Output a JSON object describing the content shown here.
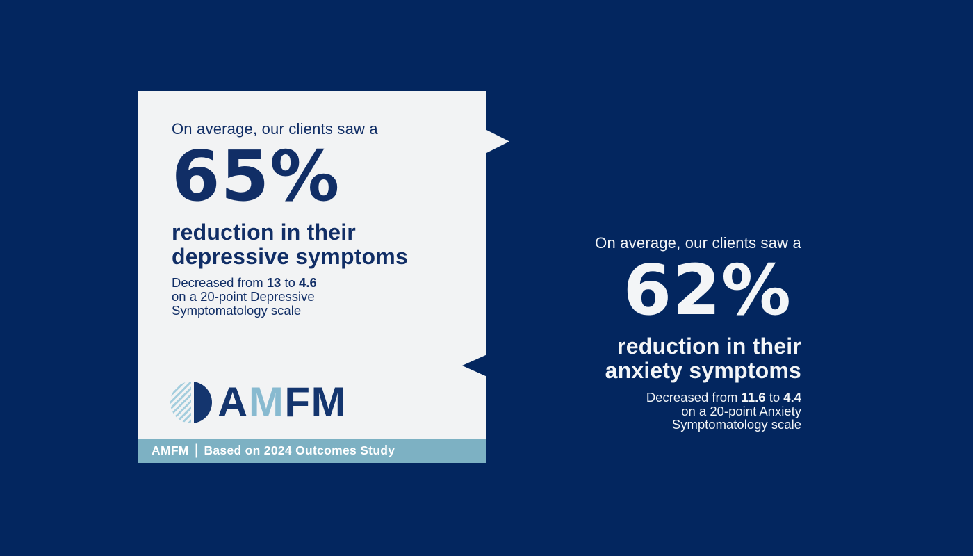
{
  "colors": {
    "background_navy": "#03265f",
    "card_background": "#f2f3f4",
    "card_text_navy": "#112e66",
    "footer_blue": "#7db1c3",
    "logo_stripe_blue": "#a5cede",
    "logo_light_blue": "#88bad0",
    "logo_navy": "#14356e",
    "white_text": "#f3f5f7"
  },
  "depression_card": {
    "lead": "On average, our clients saw a",
    "percent": "65%",
    "headline_line1": "reduction in their",
    "headline_line2": "depressive symptoms",
    "detail": {
      "prefix": "Decreased from",
      "from_value": "13",
      "connector": "to",
      "to_value": "4.6",
      "line2": "on a 20-point Depressive",
      "line3": "Symptomatology scale"
    },
    "logo": {
      "letter_a": "A",
      "letter_m1": "M",
      "letter_f": "F",
      "letter_m2": "M"
    },
    "footer": {
      "brand": "AMFM",
      "separator": "|",
      "text": "Based on 2024 Outcomes Study"
    }
  },
  "anxiety_block": {
    "lead": "On average, our clients saw a",
    "percent": "62%",
    "headline_line1": "reduction in their",
    "headline_line2": "anxiety symptoms",
    "detail": {
      "prefix": "Decreased from",
      "from_value": "11.6",
      "connector": "to",
      "to_value": "4.4",
      "line2": "on a 20-point Anxiety",
      "line3": "Symptomatology scale"
    }
  }
}
